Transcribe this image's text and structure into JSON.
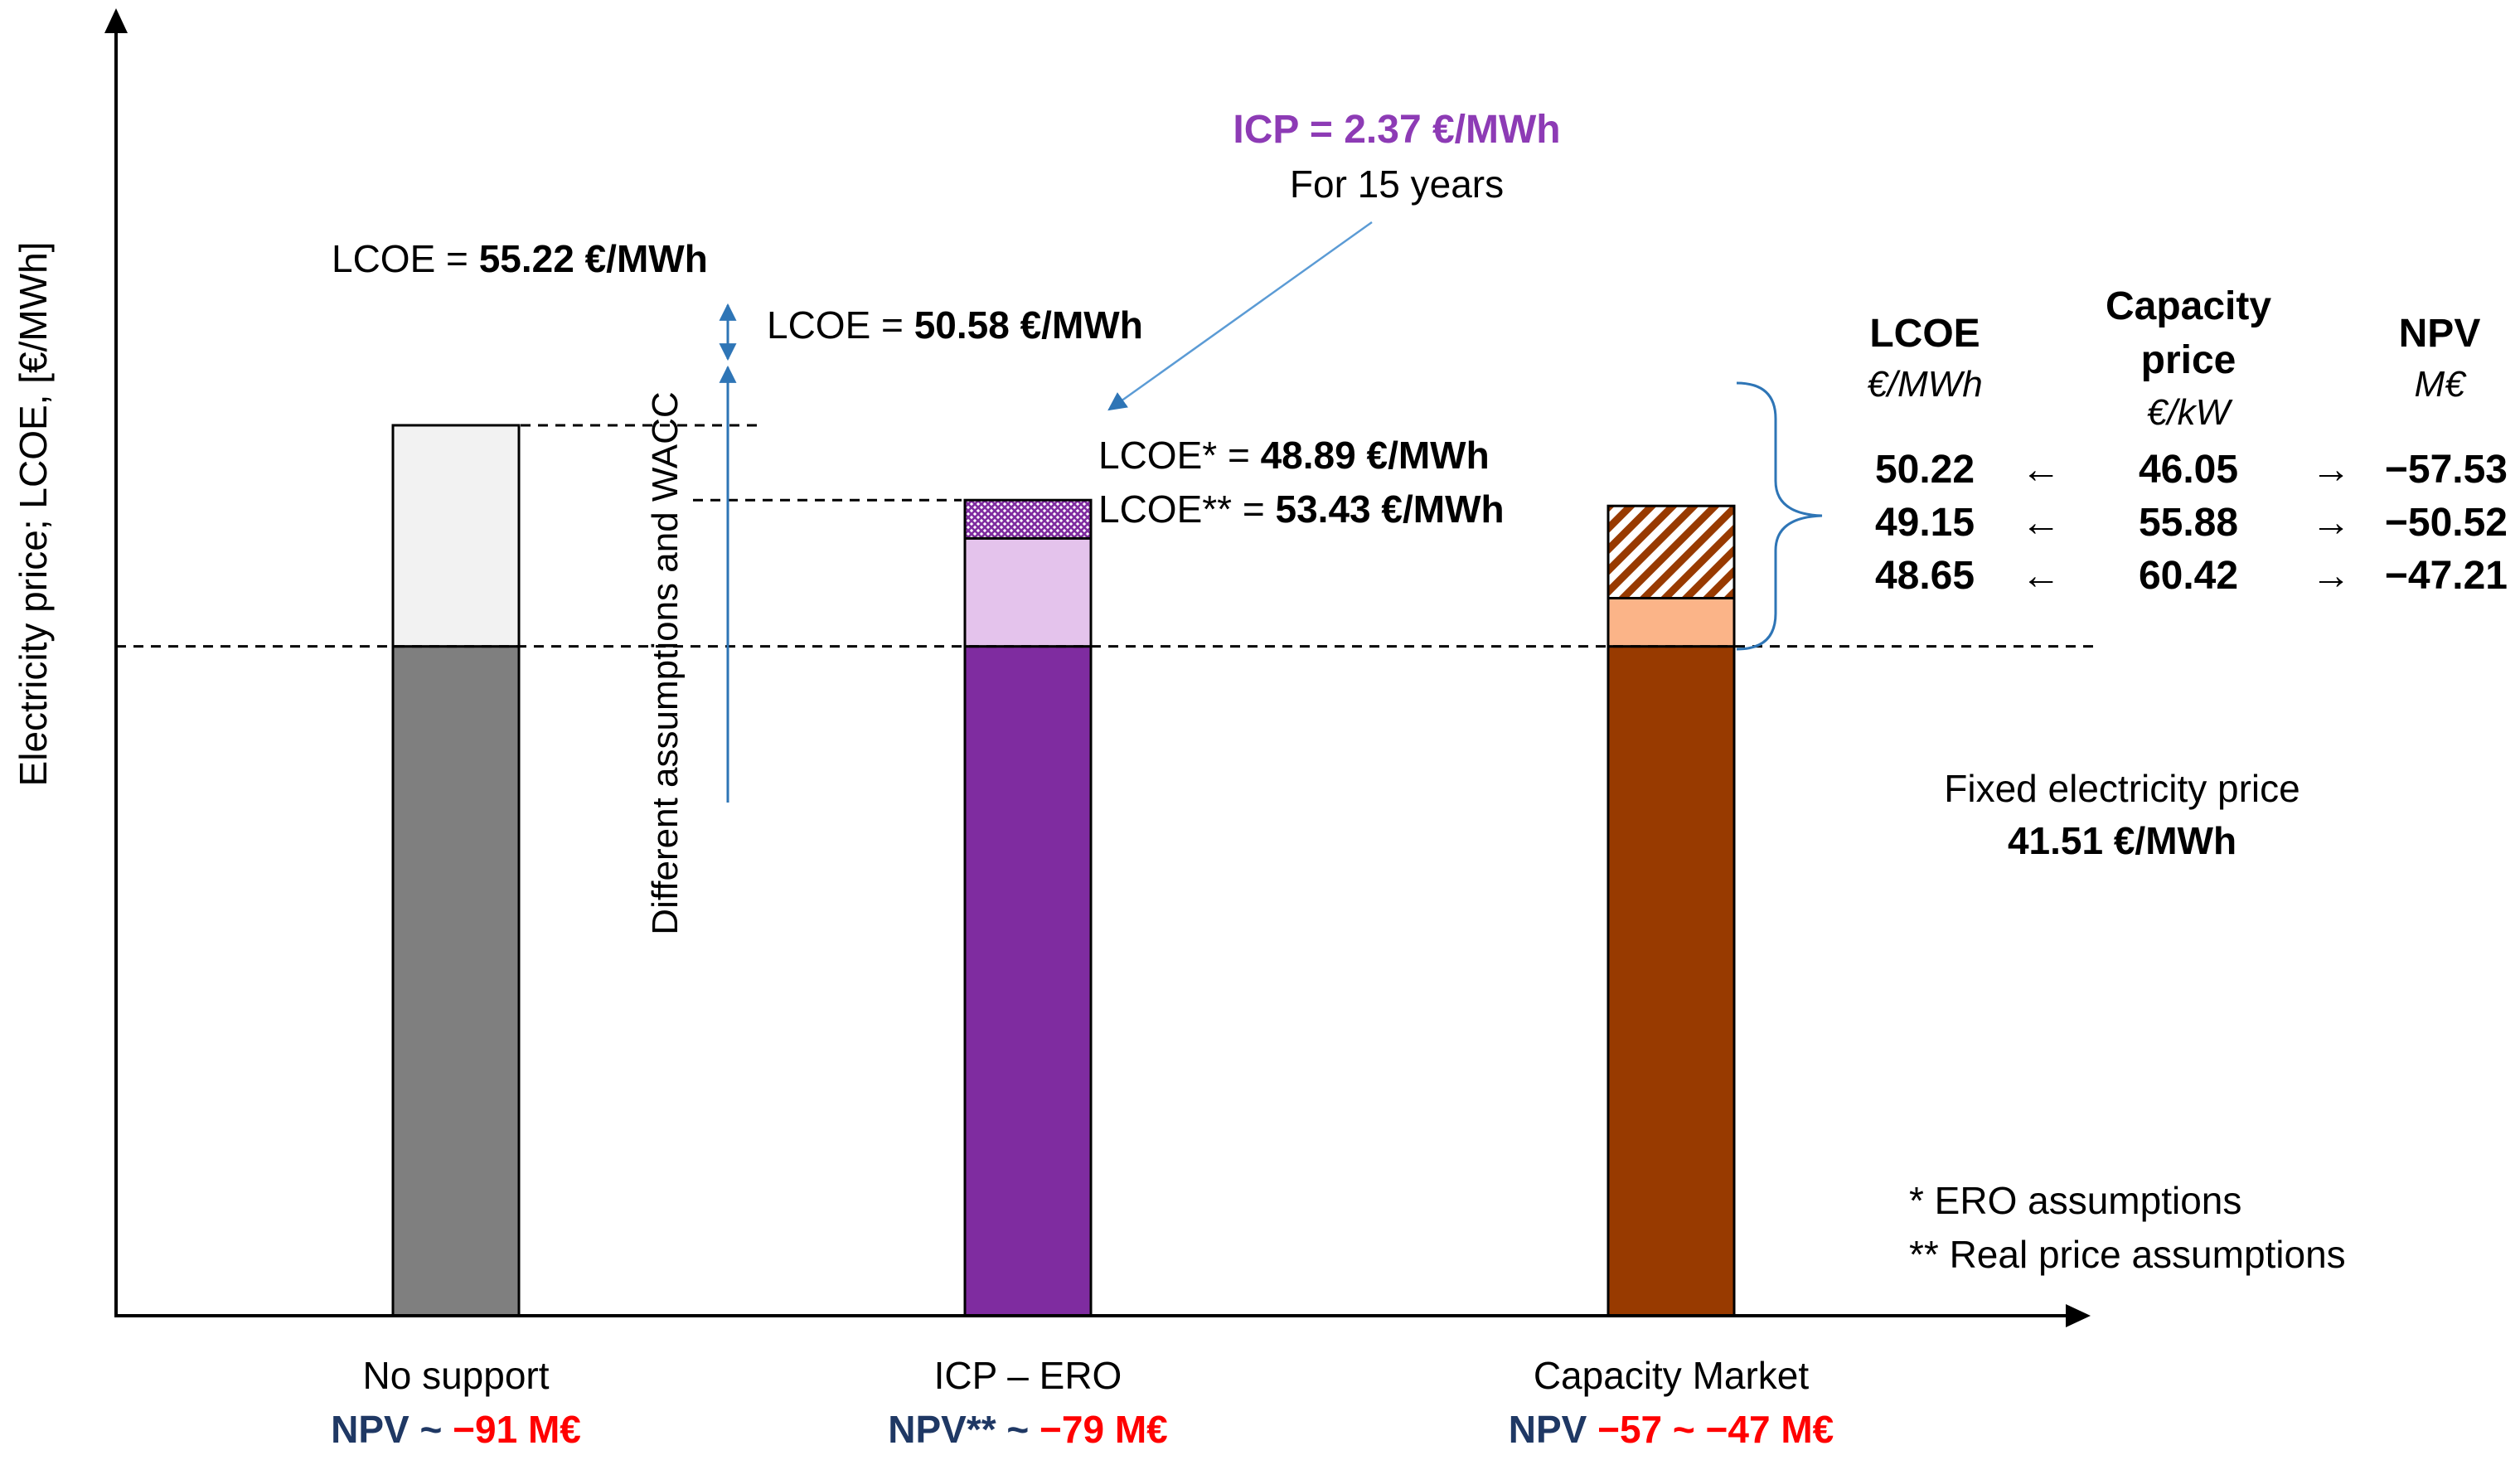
{
  "chart_data": {
    "type": "bar",
    "title": "",
    "ylabel": "Electricity price; LCOE, [€/MWh]",
    "xlabel": "",
    "ylim": [
      0,
      62
    ],
    "grid": false,
    "reference_line": {
      "value": 41.51,
      "label_line1": "Fixed electricity price",
      "label_line2": "41.51 €/MWh"
    },
    "categories": [
      {
        "name": "No support",
        "npv_prefix": "NPV ~ ",
        "npv_value": "−91 M€",
        "segments": [
          {
            "from": 0,
            "to": 41.51,
            "color": "#7f7f7f",
            "pattern": "none"
          },
          {
            "from": 41.51,
            "to": 55.22,
            "color": "#f2f2f2",
            "pattern": "none"
          }
        ],
        "top_label_prefix": "LCOE = ",
        "top_label_value": "55.22 €/MWh"
      },
      {
        "name": "ICP – ERO",
        "npv_prefix": "NPV** ~ ",
        "npv_value": "−79 M€",
        "segments": [
          {
            "from": 0,
            "to": 41.51,
            "color": "#7f2ca0",
            "pattern": "none"
          },
          {
            "from": 41.51,
            "to": 48.21,
            "color": "#e4c3ec",
            "pattern": "none"
          },
          {
            "from": 48.21,
            "to": 50.58,
            "color": "#7f2ca0",
            "pattern": "crosshatch"
          }
        ],
        "top_label_prefix": "LCOE = ",
        "top_label_value": "50.58 €/MWh",
        "side_labels": [
          {
            "prefix": "LCOE* = ",
            "value": "48.89 €/MWh"
          },
          {
            "prefix": "LCOE** = ",
            "value": "53.43 €/MWh"
          }
        ],
        "icp_annotation": {
          "title": "ICP = 2.37 €/MWh",
          "subtitle": "For 15 years",
          "color": "#8d3bb5"
        }
      },
      {
        "name": "Capacity Market",
        "npv_prefix": "NPV ",
        "npv_value": "−57 ~ −47 M€",
        "segments": [
          {
            "from": 0,
            "to": 41.51,
            "color": "#983a00",
            "pattern": "none"
          },
          {
            "from": 41.51,
            "to": 44.5,
            "color": "#fbb488",
            "pattern": "none"
          },
          {
            "from": 44.5,
            "to": 50.22,
            "color": "#983a00",
            "pattern": "diagonal"
          }
        ]
      }
    ],
    "difference_label": "Different assumptions and WACC",
    "capacity_table": {
      "headers": [
        {
          "title_line1": "LCOE",
          "title_line2": "",
          "unit": "€/MWh"
        },
        {
          "title_line1": "Capacity",
          "title_line2": "price",
          "unit": "€/kW"
        },
        {
          "title_line1": "NPV",
          "title_line2": "",
          "unit": "M€"
        }
      ],
      "rows": [
        {
          "lcoe": "50.22",
          "capacity_price": "46.05",
          "npv": "−57.53"
        },
        {
          "lcoe": "49.15",
          "capacity_price": "55.88",
          "npv": "−50.52"
        },
        {
          "lcoe": "48.65",
          "capacity_price": "60.42",
          "npv": "−47.21"
        }
      ],
      "arrow_left": "←",
      "arrow_right": "→"
    },
    "footnotes": [
      "* ERO assumptions",
      "** Real price assumptions"
    ],
    "colors": {
      "npv_label": "#1f3864",
      "npv_value": "#ff0000",
      "axis": "#000000",
      "blue_arrow": "#2e75b6",
      "icp_arrow": "#5b9bd5"
    }
  }
}
